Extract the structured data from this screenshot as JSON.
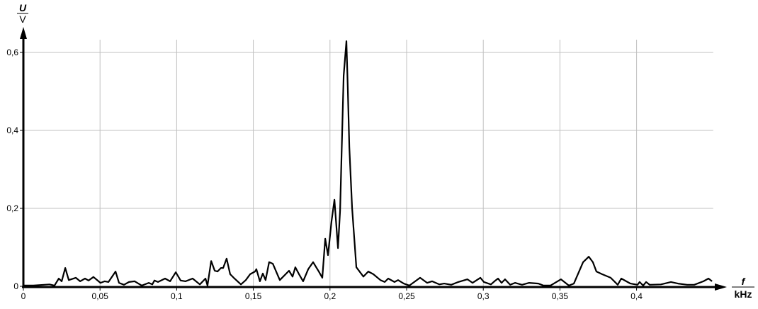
{
  "chart_data": {
    "type": "line",
    "title": "",
    "ylabel": {
      "quantity": "U",
      "unit": "V"
    },
    "xlabel": {
      "quantity": "f",
      "unit": "kHz"
    },
    "xlim": [
      0,
      0.45
    ],
    "ylim": [
      0,
      0.63
    ],
    "grid": true,
    "x_ticks": [
      0,
      0.05,
      0.1,
      0.15,
      0.2,
      0.25,
      0.3,
      0.35,
      0.4
    ],
    "x_tick_labels": [
      "0",
      "0,05",
      "0,1",
      "0,15",
      "0,2",
      "0,25",
      "0,3",
      "0,35",
      "0,4"
    ],
    "y_ticks": [
      0,
      0.2,
      0.4,
      0.6
    ],
    "y_tick_labels": [
      "0",
      "0,2",
      "0,4",
      "0,6"
    ],
    "line_color": "#000000",
    "grid_color": "#c0c0c0",
    "series": [
      {
        "x": [
          0,
          0.0065,
          0.0171,
          0.0203,
          0.0231,
          0.025,
          0.0273,
          0.0296,
          0.0342,
          0.037,
          0.0402,
          0.0425,
          0.0457,
          0.0503,
          0.0531,
          0.0555,
          0.0601,
          0.0624,
          0.0656,
          0.0689,
          0.0726,
          0.0772,
          0.0818,
          0.0841,
          0.0855,
          0.0878,
          0.0924,
          0.0957,
          0.0994,
          0.1026,
          0.1058,
          0.1104,
          0.1151,
          0.1188,
          0.1201,
          0.1225,
          0.1248,
          0.1266,
          0.1289,
          0.1303,
          0.1326,
          0.1349,
          0.1372,
          0.1419,
          0.1451,
          0.1479,
          0.1511,
          0.152,
          0.1543,
          0.1562,
          0.158,
          0.1603,
          0.1627,
          0.1673,
          0.1733,
          0.1756,
          0.1774,
          0.1798,
          0.1825,
          0.1858,
          0.189,
          0.1927,
          0.195,
          0.1969,
          0.1987,
          0.201,
          0.2029,
          0.2052,
          0.2066,
          0.2089,
          0.2107,
          0.2116,
          0.2126,
          0.2144,
          0.2172,
          0.2218,
          0.225,
          0.2283,
          0.2329,
          0.2357,
          0.238,
          0.2421,
          0.2444,
          0.2481,
          0.2518,
          0.2588,
          0.2634,
          0.2666,
          0.2713,
          0.2745,
          0.2791,
          0.2837,
          0.2897,
          0.293,
          0.2981,
          0.3004,
          0.305,
          0.3073,
          0.3096,
          0.3119,
          0.3142,
          0.3175,
          0.3207,
          0.3253,
          0.3299,
          0.336,
          0.3392,
          0.3438,
          0.3507,
          0.3558,
          0.3591,
          0.3651,
          0.3688,
          0.3715,
          0.3738,
          0.3775,
          0.3831,
          0.3877,
          0.39,
          0.396,
          0.4006,
          0.402,
          0.4043,
          0.4062,
          0.4085,
          0.4159,
          0.4224,
          0.427,
          0.433,
          0.4376,
          0.4436,
          0.4469,
          0.4492
        ],
        "y": [
          0.002,
          0.002,
          0.005,
          0.002,
          0.02,
          0.013,
          0.047,
          0.016,
          0.022,
          0.013,
          0.02,
          0.015,
          0.024,
          0.009,
          0.013,
          0.011,
          0.038,
          0.009,
          0.004,
          0.011,
          0.013,
          0.002,
          0.009,
          0.005,
          0.015,
          0.011,
          0.02,
          0.013,
          0.036,
          0.015,
          0.013,
          0.02,
          0.005,
          0.02,
          0.002,
          0.065,
          0.04,
          0.038,
          0.047,
          0.047,
          0.071,
          0.031,
          0.022,
          0.005,
          0.016,
          0.031,
          0.038,
          0.044,
          0.013,
          0.033,
          0.016,
          0.062,
          0.058,
          0.016,
          0.04,
          0.025,
          0.049,
          0.031,
          0.013,
          0.044,
          0.062,
          0.038,
          0.022,
          0.122,
          0.08,
          0.167,
          0.222,
          0.098,
          0.195,
          0.54,
          0.629,
          0.511,
          0.358,
          0.202,
          0.049,
          0.025,
          0.038,
          0.031,
          0.016,
          0.011,
          0.02,
          0.011,
          0.016,
          0.007,
          0.002,
          0.022,
          0.009,
          0.013,
          0.005,
          0.007,
          0.004,
          0.011,
          0.018,
          0.009,
          0.022,
          0.011,
          0.005,
          0.013,
          0.02,
          0.009,
          0.018,
          0.004,
          0.009,
          0.004,
          0.009,
          0.007,
          0.002,
          0.002,
          0.018,
          0.002,
          0.007,
          0.062,
          0.076,
          0.062,
          0.038,
          0.031,
          0.022,
          0.004,
          0.02,
          0.007,
          0.004,
          0.011,
          0.002,
          0.011,
          0.004,
          0.005,
          0.011,
          0.007,
          0.004,
          0.004,
          0.013,
          0.02,
          0.013
        ]
      }
    ]
  }
}
